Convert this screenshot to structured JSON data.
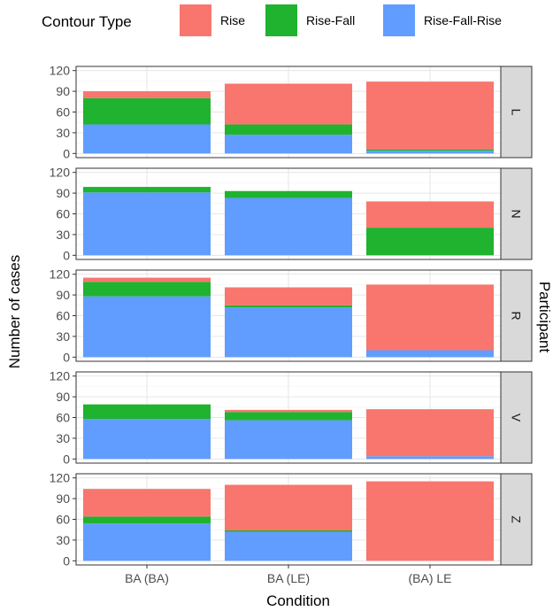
{
  "chart_data": {
    "type": "bar",
    "stacked": true,
    "legend": {
      "title": "Contour Type",
      "position": "top",
      "entries": [
        {
          "name": "Rise",
          "color": "#F8766D"
        },
        {
          "name": "Rise-Fall",
          "color": "#1FB32F"
        },
        {
          "name": "Rise-Fall-Rise",
          "color": "#619CFF"
        }
      ]
    },
    "xlabel": "Condition",
    "ylabel": "Number of cases",
    "facet_label": "Participant",
    "categories": [
      "BA (BA)",
      "BA (LE)",
      "(BA) LE"
    ],
    "ylim": [
      0,
      120
    ],
    "yticks": [
      0,
      30,
      60,
      90,
      120
    ],
    "grid": true,
    "facets": [
      {
        "name": "L",
        "series": [
          {
            "name": "Rise-Fall-Rise",
            "values": [
              42,
              27,
              4
            ]
          },
          {
            "name": "Rise-Fall",
            "values": [
              38,
              15,
              2
            ]
          },
          {
            "name": "Rise",
            "values": [
              10,
              59,
              98
            ]
          }
        ]
      },
      {
        "name": "N",
        "series": [
          {
            "name": "Rise-Fall-Rise",
            "values": [
              91,
              83,
              0
            ]
          },
          {
            "name": "Rise-Fall",
            "values": [
              8,
              10,
              40
            ]
          },
          {
            "name": "Rise",
            "values": [
              0,
              0,
              38
            ]
          }
        ]
      },
      {
        "name": "R",
        "series": [
          {
            "name": "Rise-Fall-Rise",
            "values": [
              88,
              72,
              10
            ]
          },
          {
            "name": "Rise-Fall",
            "values": [
              21,
              3,
              0
            ]
          },
          {
            "name": "Rise",
            "values": [
              6,
              26,
              95
            ]
          }
        ]
      },
      {
        "name": "V",
        "series": [
          {
            "name": "Rise-Fall-Rise",
            "values": [
              58,
              56,
              4
            ]
          },
          {
            "name": "Rise-Fall",
            "values": [
              21,
              12,
              0
            ]
          },
          {
            "name": "Rise",
            "values": [
              0,
              3,
              68
            ]
          }
        ]
      },
      {
        "name": "Z",
        "series": [
          {
            "name": "Rise-Fall-Rise",
            "values": [
              54,
              42,
              0
            ]
          },
          {
            "name": "Rise-Fall",
            "values": [
              10,
              2,
              0
            ]
          },
          {
            "name": "Rise",
            "values": [
              40,
              66,
              115
            ]
          }
        ]
      }
    ]
  }
}
